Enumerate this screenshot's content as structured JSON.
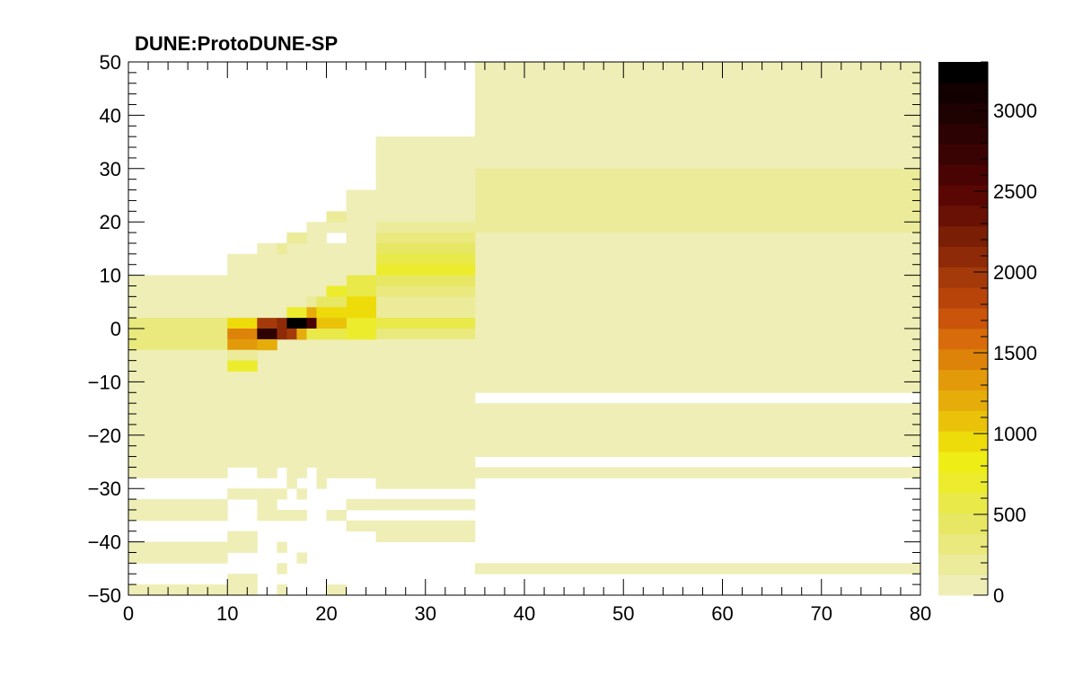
{
  "chart_data": {
    "type": "heatmap",
    "title": "DUNE:ProtoDUNE-SP",
    "xlabel": "",
    "ylabel": "",
    "xlim": [
      0,
      80
    ],
    "ylim": [
      -50,
      50
    ],
    "zlim": [
      0,
      3300
    ],
    "x_ticks": [
      "0",
      "10",
      "20",
      "30",
      "40",
      "50",
      "60",
      "70",
      "80"
    ],
    "x_tick_values": [
      0,
      10,
      20,
      30,
      40,
      50,
      60,
      70,
      80
    ],
    "y_ticks": [
      "50",
      "40",
      "30",
      "20",
      "10",
      "0",
      "−10",
      "−20",
      "−30",
      "−40",
      "−50"
    ],
    "y_tick_values": [
      50,
      40,
      30,
      20,
      10,
      0,
      -10,
      -20,
      -30,
      -40,
      -50
    ],
    "z_ticks": [
      "3000",
      "2500",
      "2000",
      "1500",
      "1000",
      "500",
      "0"
    ],
    "z_tick_values": [
      3000,
      2500,
      2000,
      1500,
      1000,
      500,
      0
    ],
    "palette": [
      "#eeeeb6",
      "#ebeb9a",
      "#e9e97d",
      "#e7e764",
      "#e9e94a",
      "#ecec2c",
      "#eeee16",
      "#eedb0a",
      "#eac20a",
      "#e6ad0a",
      "#e29a0a",
      "#dd830a",
      "#d86c0a",
      "#c9540a",
      "#b8440a",
      "#a43a0a",
      "#8e2a07",
      "#7a1e05",
      "#691104",
      "#5a0703",
      "#4a0303",
      "#3a0303",
      "#2c0202",
      "#1e0101",
      "#120000",
      "#000000"
    ],
    "cells": [
      {
        "x": [
          35,
          80
        ],
        "y": [
          30,
          50
        ],
        "z": 10
      },
      {
        "x": [
          35,
          80
        ],
        "y": [
          18,
          30
        ],
        "z": 230
      },
      {
        "x": [
          35,
          80
        ],
        "y": [
          -12,
          18
        ],
        "z": 10
      },
      {
        "x": [
          35,
          80
        ],
        "y": [
          -24,
          -14
        ],
        "z": 10
      },
      {
        "x": [
          35,
          80
        ],
        "y": [
          -28,
          -26
        ],
        "z": 10
      },
      {
        "x": [
          35,
          80
        ],
        "y": [
          -46,
          -44
        ],
        "z": 10
      },
      {
        "x": [
          25,
          35
        ],
        "y": [
          20,
          36
        ],
        "z": 10
      },
      {
        "x": [
          25,
          35
        ],
        "y": [
          18,
          20
        ],
        "z": 180
      },
      {
        "x": [
          25,
          35
        ],
        "y": [
          16,
          18
        ],
        "z": 330
      },
      {
        "x": [
          25,
          35
        ],
        "y": [
          14,
          16
        ],
        "z": 420
      },
      {
        "x": [
          25,
          35
        ],
        "y": [
          12,
          14
        ],
        "z": 520
      },
      {
        "x": [
          25,
          35
        ],
        "y": [
          10,
          12
        ],
        "z": 640
      },
      {
        "x": [
          25,
          35
        ],
        "y": [
          8,
          10
        ],
        "z": 470
      },
      {
        "x": [
          25,
          35
        ],
        "y": [
          6,
          8
        ],
        "z": 300
      },
      {
        "x": [
          25,
          35
        ],
        "y": [
          2,
          6
        ],
        "z": 140
      },
      {
        "x": [
          25,
          35
        ],
        "y": [
          0,
          2
        ],
        "z": 520
      },
      {
        "x": [
          25,
          35
        ],
        "y": [
          -2,
          0
        ],
        "z": 300
      },
      {
        "x": [
          25,
          35
        ],
        "y": [
          -30,
          -2
        ],
        "z": 10
      },
      {
        "x": [
          22,
          25
        ],
        "y": [
          -28,
          26
        ],
        "z": 10
      },
      {
        "x": [
          22,
          25
        ],
        "y": [
          6,
          10
        ],
        "z": 600
      },
      {
        "x": [
          22,
          25
        ],
        "y": [
          2,
          6
        ],
        "z": 900
      },
      {
        "x": [
          22,
          25
        ],
        "y": [
          -2,
          2
        ],
        "z": 650
      },
      {
        "x": [
          10,
          22
        ],
        "y": [
          -26,
          14
        ],
        "z": 10
      },
      {
        "x": [
          0,
          10
        ],
        "y": [
          -28,
          10
        ],
        "z": 10
      },
      {
        "x": [
          0,
          10
        ],
        "y": [
          -4,
          2
        ],
        "z": 330
      },
      {
        "x": [
          0,
          10
        ],
        "y": [
          -8,
          -4
        ],
        "z": 120
      },
      {
        "x": [
          10,
          25
        ],
        "y": [
          -26,
          -8
        ],
        "z": 10
      },
      {
        "x": [
          13,
          22
        ],
        "y": [
          14,
          16
        ],
        "z": 10
      },
      {
        "x": [
          16,
          20
        ],
        "y": [
          16,
          18
        ],
        "z": 10
      },
      {
        "x": [
          18,
          22
        ],
        "y": [
          18,
          20
        ],
        "z": 10
      },
      {
        "x": [
          20,
          22
        ],
        "y": [
          20,
          22
        ],
        "z": 250
      },
      {
        "x": [
          15,
          16
        ],
        "y": [
          14,
          16
        ],
        "z": 150
      },
      {
        "x": [
          16,
          18
        ],
        "y": [
          16,
          18
        ],
        "z": 150
      },
      {
        "x": [
          18,
          22
        ],
        "y": [
          -4,
          0
        ],
        "z": 10
      },
      {
        "x": [
          10,
          13
        ],
        "y": [
          0,
          2
        ],
        "z": 1000
      },
      {
        "x": [
          10,
          13
        ],
        "y": [
          -2,
          0
        ],
        "z": 1450
      },
      {
        "x": [
          10,
          13
        ],
        "y": [
          -4,
          -2
        ],
        "z": 1350
      },
      {
        "x": [
          10,
          13
        ],
        "y": [
          -6,
          -4
        ],
        "z": 200
      },
      {
        "x": [
          10,
          13
        ],
        "y": [
          -8,
          -6
        ],
        "z": 650
      },
      {
        "x": [
          13,
          15
        ],
        "y": [
          0,
          2
        ],
        "z": 1950
      },
      {
        "x": [
          13,
          15
        ],
        "y": [
          -2,
          0
        ],
        "z": 2800
      },
      {
        "x": [
          13,
          15
        ],
        "y": [
          -4,
          -2
        ],
        "z": 1150
      },
      {
        "x": [
          15,
          16
        ],
        "y": [
          0,
          2
        ],
        "z": 2100
      },
      {
        "x": [
          15,
          16
        ],
        "y": [
          -2,
          0
        ],
        "z": 2100
      },
      {
        "x": [
          16,
          18
        ],
        "y": [
          2,
          4
        ],
        "z": 650
      },
      {
        "x": [
          16,
          18
        ],
        "y": [
          0,
          2
        ],
        "z": 3300
      },
      {
        "x": [
          16,
          18
        ],
        "y": [
          -2,
          0
        ],
        "z": 2000
      },
      {
        "x": [
          17,
          18
        ],
        "y": [
          -2,
          0
        ],
        "z": 1250
      },
      {
        "x": [
          18,
          19
        ],
        "y": [
          4,
          6
        ],
        "z": 200
      },
      {
        "x": [
          18,
          19
        ],
        "y": [
          2,
          4
        ],
        "z": 1200
      },
      {
        "x": [
          18,
          19
        ],
        "y": [
          0,
          2
        ],
        "z": 2600
      },
      {
        "x": [
          18,
          19
        ],
        "y": [
          -2,
          0
        ],
        "z": 550
      },
      {
        "x": [
          19,
          22
        ],
        "y": [
          4,
          6
        ],
        "z": 450
      },
      {
        "x": [
          19,
          22
        ],
        "y": [
          2,
          4
        ],
        "z": 950
      },
      {
        "x": [
          19,
          22
        ],
        "y": [
          0,
          2
        ],
        "z": 1050
      },
      {
        "x": [
          19,
          22
        ],
        "y": [
          -2,
          0
        ],
        "z": 550
      },
      {
        "x": [
          20,
          22
        ],
        "y": [
          6,
          8
        ],
        "z": 700
      },
      {
        "x": [
          22,
          25
        ],
        "y": [
          22,
          26
        ],
        "z": 10
      },
      {
        "x": [
          0,
          10
        ],
        "y": [
          -36,
          -32
        ],
        "z": 10
      },
      {
        "x": [
          0,
          10
        ],
        "y": [
          -44,
          -40
        ],
        "z": 10
      },
      {
        "x": [
          0,
          10
        ],
        "y": [
          -50,
          -48
        ],
        "z": 10
      },
      {
        "x": [
          10,
          13
        ],
        "y": [
          -32,
          -30
        ],
        "z": 10
      },
      {
        "x": [
          10,
          13
        ],
        "y": [
          -42,
          -38
        ],
        "z": 10
      },
      {
        "x": [
          10,
          13
        ],
        "y": [
          -50,
          -46
        ],
        "z": 10
      },
      {
        "x": [
          13,
          15
        ],
        "y": [
          -28,
          -26
        ],
        "z": 10
      },
      {
        "x": [
          13,
          15
        ],
        "y": [
          -32,
          -30
        ],
        "z": 10
      },
      {
        "x": [
          13,
          15
        ],
        "y": [
          -34,
          -32
        ],
        "z": 10
      },
      {
        "x": [
          13,
          18
        ],
        "y": [
          -36,
          -34
        ],
        "z": 10
      },
      {
        "x": [
          15,
          16
        ],
        "y": [
          -32,
          -30
        ],
        "z": 10
      },
      {
        "x": [
          16,
          17
        ],
        "y": [
          -30,
          -28
        ],
        "z": 10
      },
      {
        "x": [
          16,
          18
        ],
        "y": [
          -28,
          -26
        ],
        "z": 10
      },
      {
        "x": [
          17,
          18
        ],
        "y": [
          -32,
          -30
        ],
        "z": 10
      },
      {
        "x": [
          15,
          16
        ],
        "y": [
          -42,
          -40
        ],
        "z": 10
      },
      {
        "x": [
          15,
          16
        ],
        "y": [
          -46,
          -44
        ],
        "z": 10
      },
      {
        "x": [
          15,
          16
        ],
        "y": [
          -50,
          -48
        ],
        "z": 10
      },
      {
        "x": [
          17,
          18
        ],
        "y": [
          -44,
          -42
        ],
        "z": 10
      },
      {
        "x": [
          18,
          19
        ],
        "y": [
          -26,
          -22
        ],
        "z": 10
      },
      {
        "x": [
          19,
          20
        ],
        "y": [
          -30,
          -24
        ],
        "z": 10
      },
      {
        "x": [
          20,
          22
        ],
        "y": [
          -28,
          -26
        ],
        "z": 10
      },
      {
        "x": [
          20,
          22
        ],
        "y": [
          -36,
          -34
        ],
        "z": 10
      },
      {
        "x": [
          20,
          22
        ],
        "y": [
          -50,
          -48
        ],
        "z": 10
      },
      {
        "x": [
          22,
          25
        ],
        "y": [
          -34,
          -32
        ],
        "z": 10
      },
      {
        "x": [
          22,
          35
        ],
        "y": [
          -34,
          -32
        ],
        "z": 10
      },
      {
        "x": [
          22,
          35
        ],
        "y": [
          -38,
          -36
        ],
        "z": 10
      },
      {
        "x": [
          25,
          35
        ],
        "y": [
          -40,
          -38
        ],
        "z": 10
      },
      {
        "x": [
          25,
          35
        ],
        "y": [
          -30,
          -28
        ],
        "z": 10
      }
    ]
  }
}
